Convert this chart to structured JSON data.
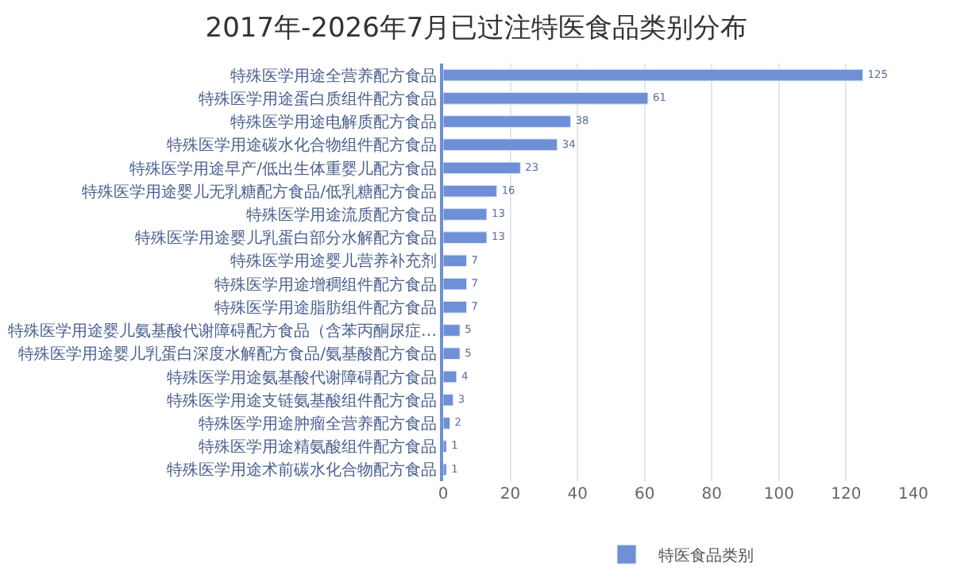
{
  "chart_data": {
    "type": "bar",
    "orientation": "horizontal",
    "title": "2017年-2026年7月已过注特医食品类别分布",
    "categories": [
      "特殊医学用途全营养配方食品",
      "特殊医学用途蛋白质组件配方食品",
      "特殊医学用途电解质配方食品",
      "特殊医学用途碳水化合物组件配方食品",
      "特殊医学用途早产/低出生体重婴儿配方食品",
      "特殊医学用途婴儿无乳糖配方食品/低乳糖配方食品",
      "特殊医学用途流质配方食品",
      "特殊医学用途婴儿乳蛋白部分水解配方食品",
      "特殊医学用途婴儿营养补充剂",
      "特殊医学用途增稠组件配方食品",
      "特殊医学用途脂肪组件配方食品",
      "特殊医学用途婴儿氨基酸代谢障碍配方食品（含苯丙酮尿症…",
      "特殊医学用途婴儿乳蛋白深度水解配方食品/氨基酸配方食品",
      "特殊医学用途氨基酸代谢障碍配方食品",
      "特殊医学用途支链氨基酸组件配方食品",
      "特殊医学用途肿瘤全营养配方食品",
      "特殊医学用途精氨酸组件配方食品",
      "特殊医学用途术前碳水化合物配方食品"
    ],
    "series": [
      {
        "name": "特医食品类别",
        "color": "#6f8fd6",
        "values": [
          125,
          61,
          38,
          34,
          23,
          16,
          13,
          13,
          7,
          7,
          7,
          5,
          5,
          4,
          3,
          2,
          1,
          1
        ]
      }
    ],
    "xlim": [
      0,
      140
    ],
    "xticks": [
      0,
      20,
      40,
      60,
      80,
      100,
      120,
      140
    ],
    "grid": true,
    "legend": "bottom",
    "data_labels": true
  }
}
